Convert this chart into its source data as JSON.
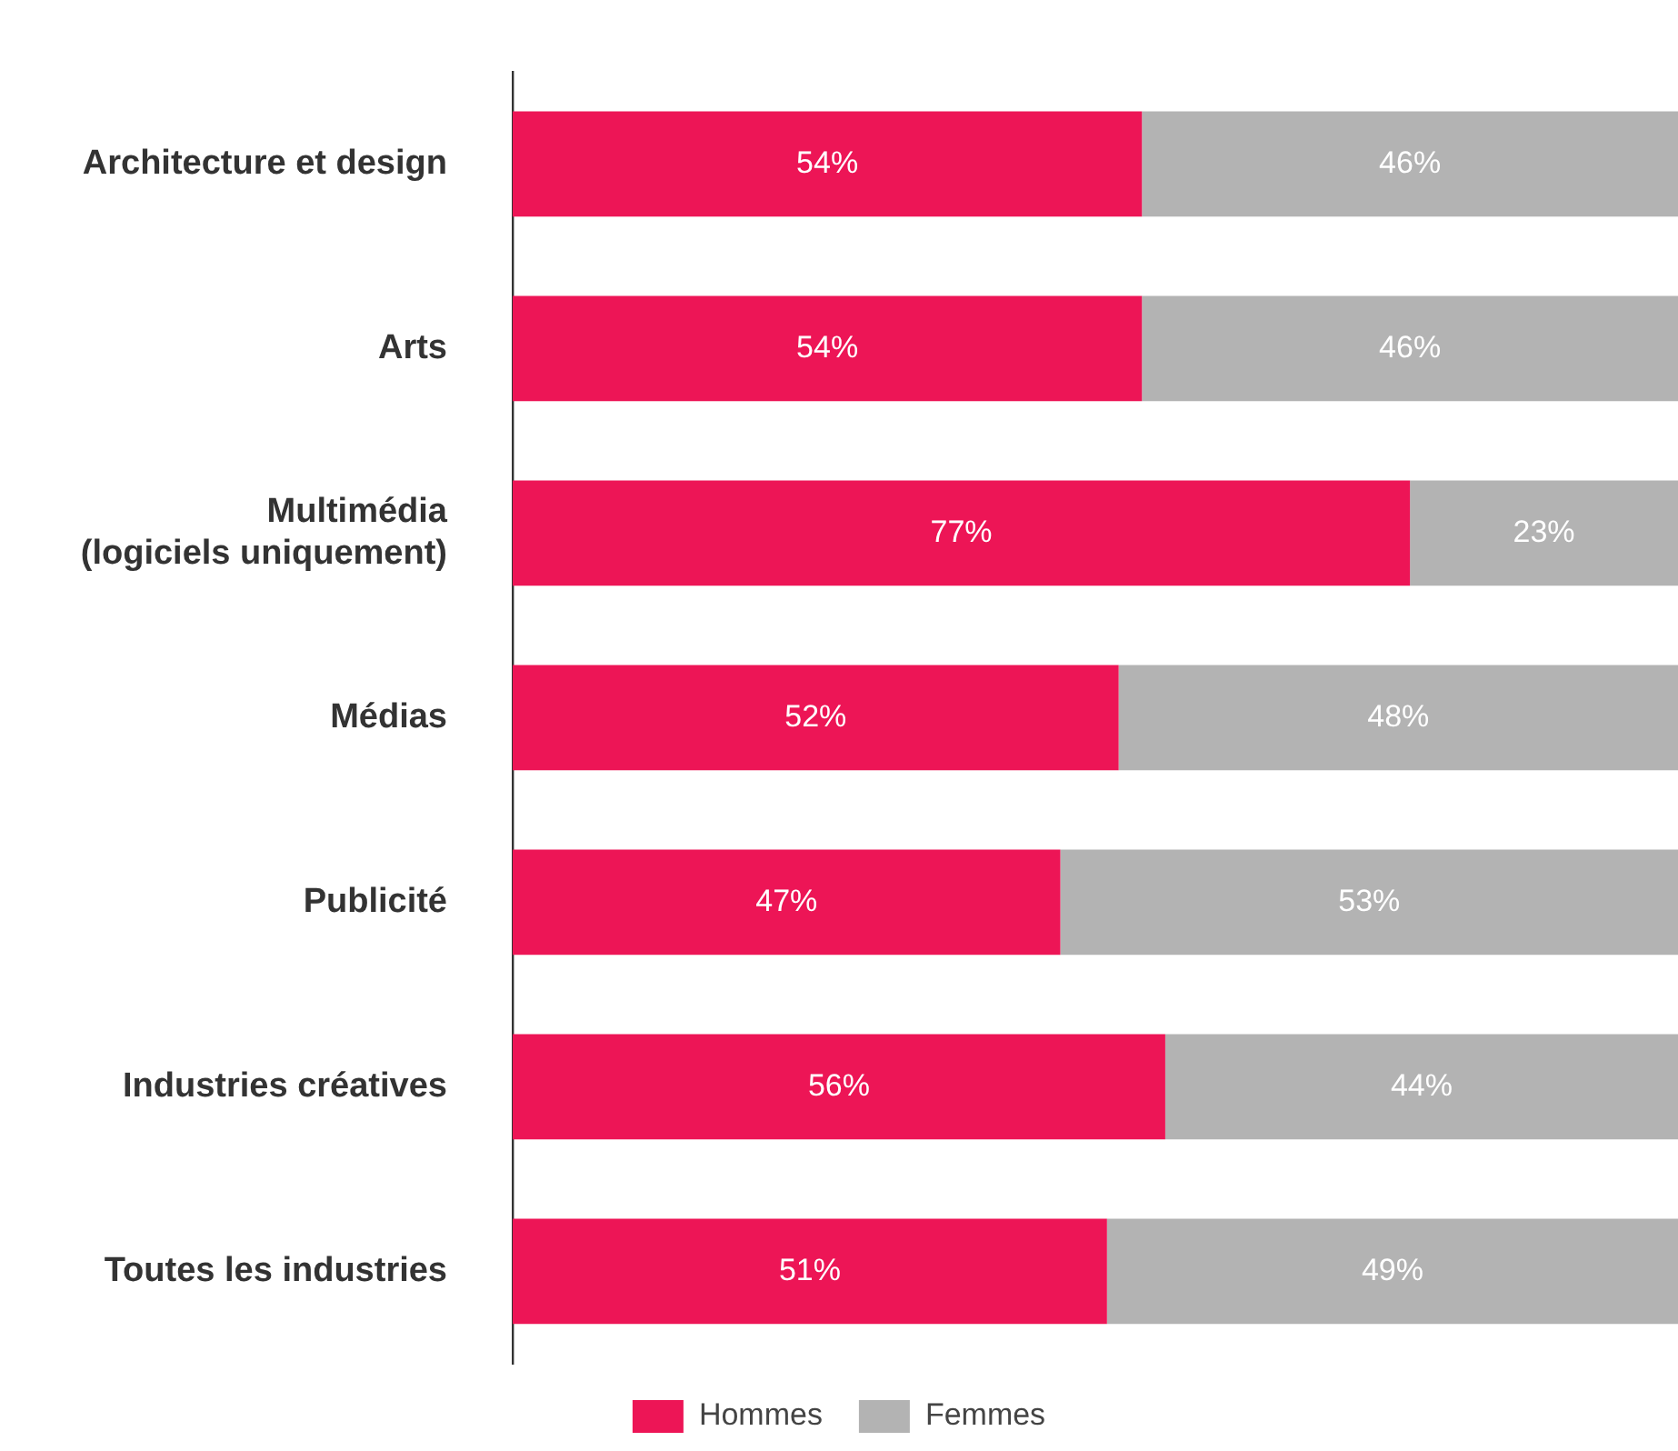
{
  "chart_data": {
    "type": "bar",
    "orientation": "horizontal",
    "stacked": true,
    "legend": "bottom",
    "tick_labels": "y",
    "categories": [
      "Architecture et design",
      "Arts",
      "Multimédia\n(logiciels uniquement)",
      "Médias",
      "Publicité",
      "Industries créatives",
      "Toutes les industries"
    ],
    "series": [
      {
        "name": "Hommes",
        "color": "#ed1556",
        "values": [
          54,
          54,
          77,
          52,
          47,
          56,
          51
        ],
        "value_labels": [
          "54%",
          "54%",
          "77%",
          "52%",
          "47%",
          "56%",
          "51%"
        ]
      },
      {
        "name": "Femmes",
        "color": "#b3b3b3",
        "values": [
          46,
          46,
          23,
          48,
          53,
          44,
          49
        ],
        "value_labels": [
          "46%",
          "46%",
          "23%",
          "48%",
          "53%",
          "44%",
          "49%"
        ]
      }
    ]
  }
}
